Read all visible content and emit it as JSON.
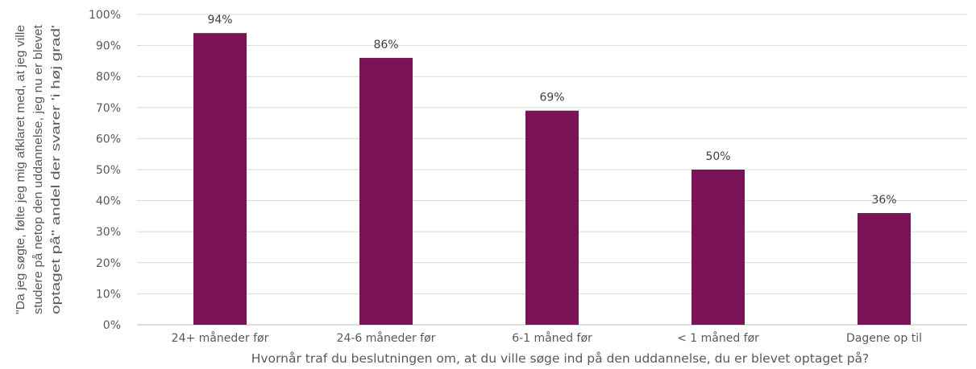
{
  "chart_data": {
    "type": "bar",
    "categories": [
      "24+ måneder før",
      "24-6 måneder før",
      "6-1 måned før",
      "< 1 måned før",
      "Dagene op til"
    ],
    "values": [
      94,
      86,
      69,
      50,
      36
    ],
    "data_labels": [
      "94%",
      "86%",
      "69%",
      "50%",
      "36%"
    ],
    "title": "",
    "xlabel": "Hvornår traf du beslutningen om, at du ville søge ind på den uddannelse, du er blevet optaget på?",
    "ylabel_lines": [
      "\"Da jeg søgte, følte jeg mig afklaret med, at jeg ville",
      "studere på netop den uddannelse, jeg nu er blevet",
      "optaget på\" andel der svarer 'i høj grad'"
    ],
    "ylim": [
      0,
      100
    ],
    "yticks": [
      0,
      10,
      20,
      30,
      40,
      50,
      60,
      70,
      80,
      90,
      100
    ],
    "ytick_labels": [
      "0%",
      "10%",
      "20%",
      "30%",
      "40%",
      "50%",
      "60%",
      "70%",
      "80%",
      "90%",
      "100%"
    ],
    "grid": true,
    "legend": "none",
    "bar_color": "#7B1456"
  }
}
